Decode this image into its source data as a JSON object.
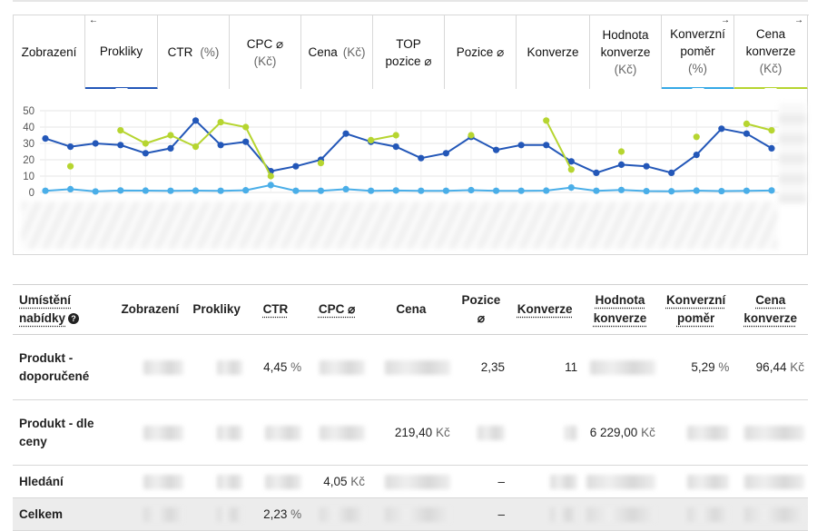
{
  "tabs": [
    {
      "line1": "Zobrazení",
      "line2": "",
      "unit": "",
      "state": "none",
      "arrow": ""
    },
    {
      "line1": "Prokliky",
      "line2": "",
      "unit": "",
      "state": "blue",
      "arrow": "←"
    },
    {
      "line1": "CTR",
      "line2": "",
      "unit": "(%)",
      "state": "none",
      "arrow": ""
    },
    {
      "line1": "CPC ⌀",
      "line2": "",
      "unit": "(Kč)",
      "state": "none",
      "arrow": ""
    },
    {
      "line1": "Cena",
      "line2": "",
      "unit": "(Kč)",
      "state": "none",
      "arrow": ""
    },
    {
      "line1": "TOP",
      "line2": "pozice ⌀",
      "unit": "",
      "state": "none",
      "arrow": ""
    },
    {
      "line1": "Pozice ⌀",
      "line2": "",
      "unit": "",
      "state": "none",
      "arrow": ""
    },
    {
      "line1": "Konverze",
      "line2": "",
      "unit": "",
      "state": "none",
      "arrow": ""
    },
    {
      "line1": "Hodnota",
      "line2": "konverze",
      "unit": "(Kč)",
      "state": "none",
      "arrow": ""
    },
    {
      "line1": "Konverzní",
      "line2": "poměr",
      "unit": "(%)",
      "state": "cyan",
      "arrow": "→"
    },
    {
      "line1": "Cena",
      "line2": "konverze",
      "unit": "(Kč)",
      "state": "lime",
      "arrow": "→"
    }
  ],
  "chart_data": {
    "type": "line",
    "y_ticks": [
      "0",
      "10",
      "20",
      "30",
      "40",
      "50"
    ],
    "ylim": [
      0,
      50
    ],
    "grid": true,
    "series": [
      {
        "color": "#2357b8",
        "values": [
          33,
          28,
          30,
          29,
          24,
          27,
          44,
          29,
          31,
          13,
          16,
          20,
          36,
          31,
          28,
          21,
          24,
          34,
          26,
          29,
          29,
          19,
          12,
          17,
          16,
          12,
          23,
          39,
          36,
          27
        ]
      },
      {
        "color": "#b6d530",
        "values": [
          null,
          16,
          null,
          38,
          30,
          35,
          28,
          43,
          40,
          10,
          null,
          18,
          null,
          32,
          35,
          null,
          null,
          35,
          null,
          null,
          44,
          14,
          null,
          25,
          null,
          null,
          34,
          null,
          42,
          38
        ]
      },
      {
        "color": "#4aaee8",
        "values": [
          1,
          2,
          0.6,
          1.2,
          1.1,
          1,
          1.1,
          1,
          1.3,
          4.5,
          1,
          1,
          2,
          1,
          1.2,
          1,
          1,
          1.4,
          1,
          1,
          1.1,
          3,
          1,
          1.5,
          0.8,
          0.7,
          1.1,
          0.8,
          1,
          1.2
        ]
      }
    ]
  },
  "table": {
    "headers": {
      "placement_line1": "Umístění",
      "placement_line2": "nabídky",
      "help": "?",
      "zobrazeni": "Zobrazení",
      "prokliky": "Prokliky",
      "ctr": "CTR",
      "cpc": "CPC ⌀",
      "cena": "Cena",
      "pozice_line1": "Pozice",
      "pozice_line2": "⌀",
      "konverze": "Konverze",
      "hodnota_line1": "Hodnota",
      "hodnota_line2": "konverze",
      "pomer_line1": "Konverzní",
      "pomer_line2": "poměr",
      "cenakonv_line1": "Cena",
      "cenakonv_line2": "konverze"
    },
    "rows": [
      {
        "label": "Produkt - doporučené",
        "ctr": "4,45",
        "ctr_unit": "%",
        "cpc": "",
        "cena": "",
        "pozice": "2,35",
        "konverze": "11",
        "hodnota": "",
        "pomer": "5,29",
        "pomer_unit": "%",
        "cena_konv": "96,44",
        "cena_konv_unit": "Kč"
      },
      {
        "label": "Produkt - dle ceny",
        "ctr": "",
        "ctr_unit": "",
        "cpc": "",
        "cena": "219,40",
        "cena_unit": "Kč",
        "pozice": "",
        "konverze": "",
        "hodnota": "6 229,00",
        "hodnota_unit": "Kč",
        "pomer": "",
        "cena_konv": ""
      },
      {
        "label": "Hledání",
        "ctr": "",
        "cpc": "4,05",
        "cpc_unit": "Kč",
        "cena": "",
        "pozice": "–",
        "konverze": "",
        "hodnota": "",
        "pomer": "",
        "cena_konv": ""
      },
      {
        "label": "Celkem",
        "ctr": "2,23",
        "ctr_unit": "%",
        "cpc": "",
        "cena": "",
        "pozice": "–",
        "konverze": "",
        "hodnota": "",
        "pomer": "",
        "cena_konv": ""
      }
    ]
  }
}
